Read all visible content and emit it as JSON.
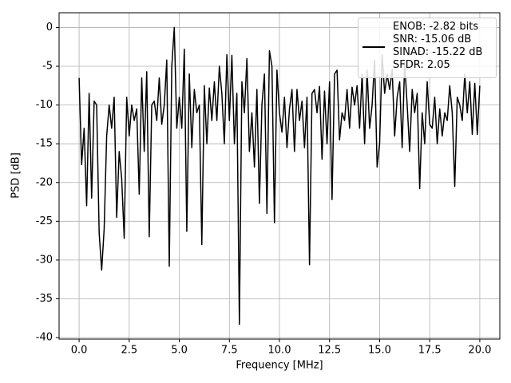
{
  "chart_data": {
    "type": "line",
    "xlabel": "Frequency [MHz]",
    "ylabel": "PSD [dB]",
    "x": [
      0,
      0.125,
      0.25,
      0.375,
      0.5,
      0.625,
      0.75,
      0.875,
      1,
      1.125,
      1.25,
      1.375,
      1.5,
      1.625,
      1.75,
      1.875,
      2,
      2.125,
      2.25,
      2.375,
      2.5,
      2.625,
      2.75,
      2.875,
      3,
      3.125,
      3.25,
      3.375,
      3.5,
      3.625,
      3.75,
      3.875,
      4,
      4.125,
      4.25,
      4.375,
      4.5,
      4.625,
      4.75,
      4.875,
      5,
      5.125,
      5.25,
      5.375,
      5.5,
      5.625,
      5.75,
      5.875,
      6,
      6.125,
      6.25,
      6.375,
      6.5,
      6.625,
      6.75,
      6.875,
      7,
      7.125,
      7.25,
      7.375,
      7.5,
      7.625,
      7.75,
      7.875,
      8,
      8.125,
      8.25,
      8.375,
      8.5,
      8.625,
      8.75,
      8.875,
      9,
      9.125,
      9.25,
      9.375,
      9.5,
      9.625,
      9.75,
      9.875,
      10,
      10.125,
      10.25,
      10.375,
      10.5,
      10.625,
      10.75,
      10.875,
      11,
      11.125,
      11.25,
      11.375,
      11.5,
      11.625,
      11.75,
      11.875,
      12,
      12.125,
      12.25,
      12.375,
      12.5,
      12.625,
      12.75,
      12.875,
      13,
      13.125,
      13.25,
      13.375,
      13.5,
      13.625,
      13.75,
      13.875,
      14,
      14.125,
      14.25,
      14.375,
      14.5,
      14.625,
      14.75,
      14.875,
      15,
      15.125,
      15.25,
      15.375,
      15.5,
      15.625,
      15.75,
      15.875,
      16,
      16.125,
      16.25,
      16.375,
      16.5,
      16.625,
      16.75,
      16.875,
      17,
      17.125,
      17.25,
      17.375,
      17.5,
      17.625,
      17.75,
      17.875,
      18,
      18.125,
      18.25,
      18.375,
      18.5,
      18.625,
      18.75,
      18.875,
      19,
      19.125,
      19.25,
      19.375,
      19.5,
      19.625,
      19.75,
      19.875,
      20
    ],
    "series": [
      {
        "name": "ENOB: -2.82 bits\nSNR: -15.06 dB\nSINAD: -15.22 dB\nSFDR: 2.05",
        "color": "#000000",
        "values": [
          -6.5,
          -17.7,
          -13,
          -23,
          -8.5,
          -22,
          -9.5,
          -10,
          -26.5,
          -31.3,
          -26,
          -14,
          -10,
          -13,
          -9,
          -24.5,
          -16,
          -19.5,
          -27.2,
          -9,
          -14,
          -10,
          -12,
          -10.5,
          -21.5,
          -6.5,
          -16,
          -5.7,
          -27,
          -10,
          -9.5,
          -12,
          -6.5,
          -12.5,
          -10,
          -4.2,
          -30.8,
          -5,
          0,
          -13,
          -9,
          -13,
          -2.8,
          -26.3,
          -6,
          -15.5,
          -8,
          -11,
          -10,
          -28,
          -7.5,
          -15,
          -7.8,
          -12,
          -7,
          -12,
          -5,
          -8.5,
          -15,
          -3.5,
          -12,
          -3.6,
          -15,
          -8.5,
          -38.3,
          -7,
          -11,
          -4,
          -16,
          -11,
          -18,
          -8,
          -22.7,
          -10,
          -6,
          -24,
          -3,
          -5,
          -25.2,
          -5.5,
          -11,
          -13.5,
          -9,
          -15.5,
          -10.5,
          -8,
          -16,
          -8,
          -12,
          -9.5,
          -15.5,
          -9,
          -30.6,
          -8.5,
          -8,
          -11,
          -7.6,
          -17,
          -8.2,
          -15,
          -7,
          -22.2,
          -6,
          -5.5,
          -14.5,
          -11,
          -12,
          -8,
          -13,
          -7.7,
          -10,
          -7.5,
          -13,
          -6,
          -15,
          -5.5,
          -13,
          -10,
          -4.2,
          -18,
          -15,
          -3.5,
          -8.5,
          -6,
          -8,
          -5.4,
          -14,
          -9,
          -7,
          -15.5,
          -4.5,
          -10,
          -16,
          -8,
          -11,
          -8.5,
          -20.8,
          -11,
          -15,
          -7,
          -12.5,
          -13,
          -9,
          -15,
          -10.5,
          -14,
          -11,
          -12,
          -7.5,
          -11,
          -20.5,
          -9,
          -10,
          -12,
          -6,
          -11,
          -7,
          -13.8,
          -7.2,
          -13.8,
          -7.5
        ]
      }
    ],
    "xlim": [
      -1,
      21
    ],
    "xticks": [
      {
        "value": 0,
        "label": "0.0"
      },
      2.5,
      {
        "value": 5,
        "label": "5.0"
      },
      7.5,
      {
        "value": 10,
        "label": "10.0"
      },
      12.5,
      {
        "value": 15,
        "label": "15.0"
      },
      17.5,
      {
        "value": 20,
        "label": "20.0"
      }
    ],
    "ylim": [
      -40.2,
      1.9
    ],
    "yticks": [
      0,
      -5,
      -10,
      -15,
      -20,
      -25,
      -30,
      -35,
      -40
    ],
    "grid": true,
    "legend": "upper right"
  }
}
